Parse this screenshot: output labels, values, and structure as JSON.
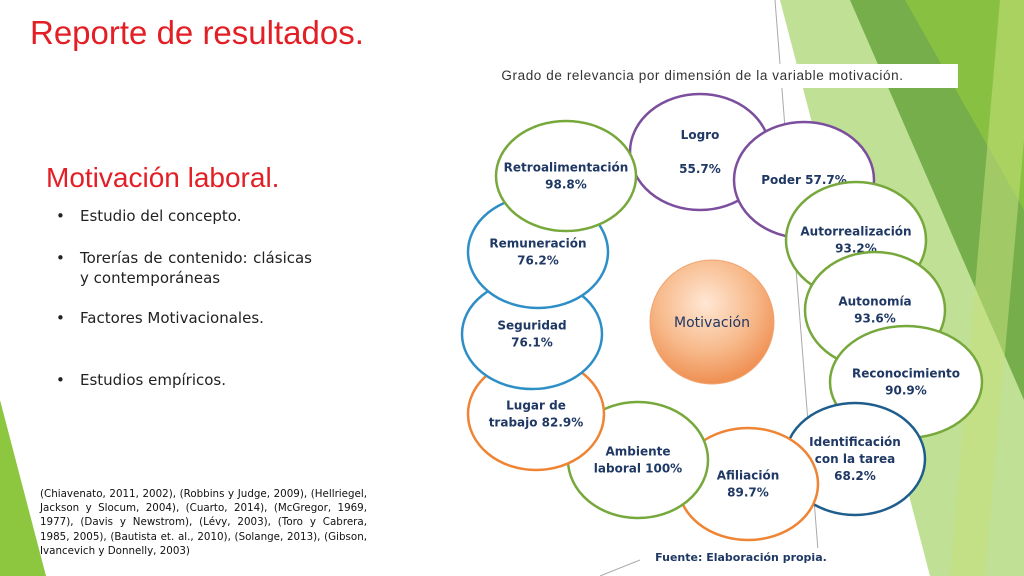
{
  "slide": {
    "title": "Reporte de resultados.",
    "subtitle": "Motivación laboral.",
    "bullets": [
      "Estudio del concepto.",
      "Torerías de contenido: clásicas y contemporáneas",
      "Factores Motivacionales.",
      "Estudios empíricos."
    ],
    "references": "(Chiavenato, 2011, 2002), (Robbins y Judge, 2009), (Hellriegel, Jackson y Slocum, 2004), (Cuarto, 2014), (McGregor, 1969, 1977), (Davis y Newstrom), (Lévy, 2003), (Toro y Cabrera, 1985, 2005), (Bautista et. al., 2010), (Solange, 2013), (Gibson, Ivancevich y Donnelly, 2003)"
  },
  "diagram": {
    "caption": "Grado de relevancia por dimensión de la variable motivación.",
    "center": "Motivación",
    "source": "Fuente: Elaboración propia.",
    "nodes": [
      {
        "lines": [
          "Logro",
          "",
          "55.7%"
        ],
        "color": "#7b4f9d"
      },
      {
        "lines": [
          "Poder 57.7%"
        ],
        "color": "#7b4f9d"
      },
      {
        "lines": [
          "Autorrealización",
          "93.2%"
        ],
        "color": "#77a83c"
      },
      {
        "lines": [
          "Autonomía",
          "93.6%"
        ],
        "color": "#77a83c"
      },
      {
        "lines": [
          "Reconocimiento",
          "90.9%"
        ],
        "color": "#77a83c"
      },
      {
        "lines": [
          "Identificación",
          "con la tarea",
          "68.2%"
        ],
        "color": "#1f5e8c"
      },
      {
        "lines": [
          "Afiliación",
          "89.7%"
        ],
        "color": "#ee8434"
      },
      {
        "lines": [
          "Ambiente",
          "laboral 100%"
        ],
        "color": "#77a83c"
      },
      {
        "lines": [
          "Lugar de",
          "trabajo 82.9%"
        ],
        "color": "#ee8434"
      },
      {
        "lines": [
          "Seguridad",
          "76.1%"
        ],
        "color": "#2e8fc6"
      },
      {
        "lines": [
          "Remuneración",
          "76.2%"
        ],
        "color": "#2e8fc6"
      },
      {
        "lines": [
          "Retroalimentación",
          "98.8%"
        ],
        "color": "#77a83c"
      }
    ]
  }
}
